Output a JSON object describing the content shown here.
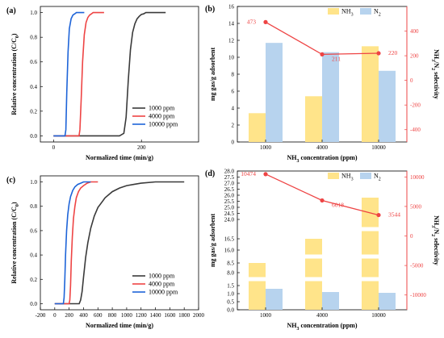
{
  "chart_data": [
    {
      "panel": "(a)",
      "type": "line",
      "xlabel": "Normalized time (min/g)",
      "ylabel": "Relative concentration (C/C₀)",
      "xlim": [
        -30,
        330
      ],
      "ylim": [
        -0.05,
        1.05
      ],
      "xticks": [
        0,
        200
      ],
      "yticks": [
        0.0,
        0.2,
        0.4,
        0.6,
        0.8,
        1.0
      ],
      "legend_position": "lower-right",
      "series": [
        {
          "name": "1000 ppm",
          "color": "#3a3a3a",
          "x": [
            0,
            150,
            160,
            165,
            170,
            175,
            180,
            185,
            190,
            195,
            200,
            205,
            210,
            220,
            230,
            240,
            250,
            255
          ],
          "y": [
            0,
            0,
            0.02,
            0.15,
            0.45,
            0.7,
            0.84,
            0.91,
            0.95,
            0.97,
            0.985,
            0.99,
            1.0,
            1.0,
            1.0,
            1.0,
            1.0,
            1.0
          ]
        },
        {
          "name": "4000 ppm",
          "color": "#ee4444",
          "x": [
            0,
            58,
            60,
            63,
            66,
            70,
            74,
            78,
            82,
            86,
            90,
            95,
            100,
            105,
            110,
            115
          ],
          "y": [
            0,
            0,
            0.05,
            0.3,
            0.6,
            0.82,
            0.92,
            0.96,
            0.98,
            0.99,
            1.0,
            1.0,
            1.0,
            1.0,
            1.0,
            1.0
          ]
        },
        {
          "name": "10000 ppm",
          "color": "#1e64d8",
          "x": [
            0,
            26,
            28,
            30,
            33,
            36,
            40,
            44,
            48,
            52,
            56,
            60,
            65,
            70
          ],
          "y": [
            0,
            0,
            0.05,
            0.35,
            0.68,
            0.87,
            0.95,
            0.98,
            0.99,
            1.0,
            1.0,
            1.0,
            1.0,
            1.0
          ]
        }
      ]
    },
    {
      "panel": "(b)",
      "type": "bar",
      "xlabel": "NH₃ concentration (ppm)",
      "ylabel": "mg gas/g adsorbent",
      "ylabel_right": "NH₃/N₂ selectivity",
      "categories": [
        "1000",
        "4000",
        "10000"
      ],
      "ylim": [
        0,
        16
      ],
      "yticks": [
        0,
        2,
        4,
        6,
        8,
        10,
        12,
        14,
        16
      ],
      "ylim_right": [
        -500,
        600
      ],
      "yticks_right": [
        -400,
        -200,
        0,
        200,
        400
      ],
      "legend_position": "top",
      "series": [
        {
          "name": "NH₃",
          "color": "#ffe48a",
          "values": [
            3.4,
            5.4,
            11.3
          ]
        },
        {
          "name": "N₂",
          "color": "#b7d3ee",
          "values": [
            11.7,
            10.6,
            8.4
          ]
        }
      ],
      "line_series": {
        "name": "NH₃/N₂ selectivity",
        "color": "#ee4444",
        "values": [
          473,
          211,
          220
        ],
        "labels": [
          "473",
          "211",
          "220"
        ]
      }
    },
    {
      "panel": "(c)",
      "type": "line",
      "xlabel": "Normalized time (min/g)",
      "ylabel": "Relative concentration (C/C₀)",
      "xlim": [
        -200,
        2000
      ],
      "ylim": [
        -0.05,
        1.05
      ],
      "xticks": [
        -200,
        0,
        200,
        400,
        600,
        800,
        1000,
        1200,
        1400,
        1600,
        1800,
        2000
      ],
      "yticks": [
        0.0,
        0.2,
        0.4,
        0.6,
        0.8,
        1.0
      ],
      "legend_position": "lower-right",
      "series": [
        {
          "name": "1000 ppm",
          "color": "#3a3a3a",
          "x": [
            0,
            340,
            360,
            380,
            400,
            430,
            460,
            500,
            550,
            600,
            700,
            800,
            900,
            1000,
            1100,
            1200,
            1400,
            1600,
            1800
          ],
          "y": [
            0,
            0,
            0.03,
            0.1,
            0.22,
            0.38,
            0.5,
            0.62,
            0.72,
            0.79,
            0.87,
            0.92,
            0.95,
            0.97,
            0.98,
            0.99,
            1.0,
            1.0,
            1.0
          ]
        },
        {
          "name": "4000 ppm",
          "color": "#ee4444",
          "x": [
            0,
            200,
            210,
            220,
            230,
            245,
            260,
            280,
            300,
            330,
            360,
            400,
            450,
            500,
            550,
            600
          ],
          "y": [
            0,
            0,
            0.03,
            0.15,
            0.35,
            0.55,
            0.7,
            0.8,
            0.87,
            0.92,
            0.95,
            0.97,
            0.99,
            1.0,
            1.0,
            1.0
          ]
        },
        {
          "name": "10000 ppm",
          "color": "#1e64d8",
          "x": [
            0,
            120,
            130,
            140,
            150,
            165,
            180,
            200,
            220,
            250,
            280,
            320,
            360,
            400,
            450,
            500
          ],
          "y": [
            0,
            0,
            0.05,
            0.2,
            0.4,
            0.6,
            0.73,
            0.82,
            0.88,
            0.93,
            0.96,
            0.98,
            0.99,
            1.0,
            1.0,
            1.0
          ]
        }
      ]
    },
    {
      "panel": "(d)",
      "type": "bar",
      "xlabel": "NH₃ concentration (ppm)",
      "ylabel": "mg gas/g adsorbent",
      "ylabel_right": "NH₃/N₂ selectivity",
      "categories": [
        "1000",
        "4000",
        "10000"
      ],
      "y_axis_broken": true,
      "y_segments": [
        [
          0,
          1.5
        ],
        [
          8,
          8.5
        ],
        [
          16,
          16.5
        ],
        [
          24,
          28
        ]
      ],
      "yticks": [
        0.0,
        0.5,
        1.0,
        1.5,
        8.0,
        8.5,
        16.0,
        16.5,
        24.0,
        24.5,
        25.0,
        25.5,
        26.0,
        26.5,
        27.0,
        27.5,
        28.0
      ],
      "ylim_right": [
        -12500,
        11000
      ],
      "yticks_right": [
        -10000,
        -5000,
        0,
        5000,
        10000
      ],
      "legend_position": "top",
      "series": [
        {
          "name": "NH₃",
          "color": "#ffe48a",
          "values": [
            8.5,
            16.5,
            25.8
          ]
        },
        {
          "name": "N₂",
          "color": "#b7d3ee",
          "values": [
            1.3,
            1.1,
            1.05
          ]
        }
      ],
      "line_series": {
        "name": "NH₃/N₂ selectivity",
        "color": "#ee4444",
        "values": [
          10474,
          6018,
          3544
        ],
        "labels": [
          "10474",
          "6018",
          "3544"
        ]
      }
    }
  ]
}
